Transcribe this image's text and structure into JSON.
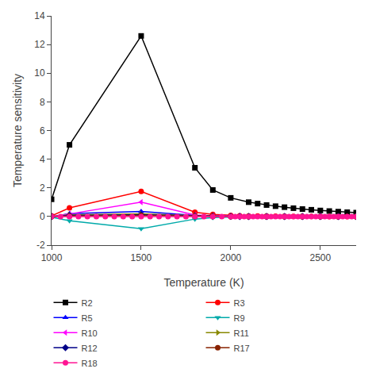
{
  "chart_data": {
    "type": "line",
    "xlabel": "Temperature (K)",
    "ylabel": "Temperature sensitivity",
    "xlim": [
      1000,
      2700
    ],
    "ylim": [
      -2,
      14
    ],
    "xticks": [
      1000,
      1500,
      2000,
      2500
    ],
    "yticks": [
      -2,
      0,
      2,
      4,
      6,
      8,
      10,
      12,
      14
    ],
    "grid": false,
    "legend": "bottom",
    "series": [
      {
        "name": "R2",
        "color": "#000000",
        "marker": "square",
        "x": [
          1000,
          1100,
          1500,
          1800,
          1900,
          2000,
          2100,
          2150,
          2200,
          2250,
          2300,
          2350,
          2400,
          2450,
          2500,
          2550,
          2600,
          2650,
          2700
        ],
        "values": [
          1.2,
          5.0,
          12.6,
          3.4,
          1.85,
          1.3,
          1.0,
          0.9,
          0.8,
          0.72,
          0.65,
          0.58,
          0.52,
          0.47,
          0.42,
          0.38,
          0.34,
          0.3,
          0.27
        ]
      },
      {
        "name": "R3",
        "color": "#ff0000",
        "marker": "circle",
        "x": [
          1000,
          1100,
          1500,
          1800,
          1900,
          2000,
          2050,
          2100,
          2150,
          2200,
          2250,
          2300,
          2350,
          2400,
          2450,
          2500,
          2550,
          2600,
          2650,
          2700
        ],
        "values": [
          0.05,
          0.6,
          1.75,
          0.3,
          0.15,
          0.08,
          0.05,
          0.04,
          0.03,
          0.03,
          0.02,
          0.02,
          0.01,
          0.01,
          0.01,
          0.01,
          0.0,
          0.0,
          0.0,
          0.0
        ]
      },
      {
        "name": "R5",
        "color": "#0000ff",
        "marker": "triangle-up",
        "x": [
          1000,
          1100,
          1500,
          1800,
          1900,
          2000,
          2050,
          2100,
          2200,
          2300,
          2400,
          2500,
          2600,
          2700
        ],
        "values": [
          -0.02,
          0.2,
          0.35,
          0.08,
          0.04,
          0.02,
          0.01,
          0.01,
          0.0,
          0.0,
          0.0,
          0.0,
          0.0,
          0.0
        ]
      },
      {
        "name": "R9",
        "color": "#00aaaa",
        "marker": "triangle-down",
        "x": [
          1000,
          1100,
          1500,
          1800,
          1900,
          2000,
          2100,
          2200,
          2300,
          2400,
          2500,
          2600,
          2700
        ],
        "values": [
          -0.05,
          -0.3,
          -0.85,
          -0.18,
          -0.08,
          -0.03,
          -0.01,
          -0.01,
          0.0,
          0.0,
          0.0,
          0.0,
          0.0
        ]
      },
      {
        "name": "R10",
        "color": "#ff00ff",
        "marker": "triangle-left",
        "x": [
          1000,
          1100,
          1500,
          1800,
          1900,
          2000,
          2050,
          2100,
          2200,
          2300,
          2400,
          2500,
          2600,
          2700
        ],
        "values": [
          0.0,
          0.18,
          1.0,
          0.1,
          0.05,
          0.02,
          0.01,
          0.01,
          0.0,
          0.0,
          0.0,
          0.0,
          0.0,
          0.0
        ]
      },
      {
        "name": "R11",
        "color": "#888800",
        "marker": "triangle-right",
        "x": [
          1000,
          1100,
          1500,
          1800,
          1900,
          2000,
          2100,
          2200,
          2300,
          2400,
          2500,
          2600,
          2700
        ],
        "values": [
          0.0,
          0.12,
          0.18,
          0.04,
          0.02,
          0.01,
          0.0,
          0.0,
          0.0,
          0.0,
          0.0,
          0.0,
          0.0
        ]
      },
      {
        "name": "R12",
        "color": "#000088",
        "marker": "diamond",
        "x": [
          1000,
          1100,
          1500,
          1800,
          1900,
          2000,
          2050,
          2100,
          2200,
          2300,
          2400,
          2500,
          2600,
          2700
        ],
        "values": [
          0.0,
          0.08,
          0.12,
          0.03,
          0.02,
          0.01,
          0.0,
          0.0,
          0.0,
          0.0,
          0.0,
          0.0,
          0.0,
          0.0
        ]
      },
      {
        "name": "R17",
        "color": "#882200",
        "marker": "circle",
        "x": [
          1000,
          1100,
          1500,
          1800,
          1900,
          2000,
          2100,
          2200,
          2300,
          2400,
          2500,
          2600,
          2700
        ],
        "values": [
          0.0,
          0.04,
          0.08,
          0.02,
          0.01,
          0.0,
          0.0,
          0.0,
          0.0,
          0.0,
          0.0,
          0.0,
          0.0
        ]
      },
      {
        "name": "R18",
        "color": "#ff1493",
        "marker": "circle",
        "x": [
          1000,
          1050,
          1100,
          1150,
          1200,
          1250,
          1300,
          1350,
          1400,
          1450,
          1500,
          1550,
          1600,
          1650,
          1700,
          1750,
          1800,
          1850,
          1900,
          1950,
          2000,
          2025,
          2050,
          2075,
          2100,
          2125,
          2150,
          2175,
          2200,
          2225,
          2250,
          2275,
          2300,
          2325,
          2350,
          2375,
          2400,
          2425,
          2450,
          2475,
          2500,
          2525,
          2550,
          2575,
          2600,
          2625,
          2650,
          2675,
          2700
        ],
        "values": [
          0.0,
          0.0,
          0.0,
          0.0,
          0.0,
          0.0,
          0.0,
          0.0,
          0.0,
          0.0,
          0.0,
          0.0,
          0.0,
          0.0,
          0.0,
          0.0,
          0.0,
          0.0,
          0.0,
          0.0,
          0.0,
          0.0,
          0.0,
          0.0,
          0.0,
          0.0,
          0.0,
          0.0,
          0.0,
          0.0,
          0.0,
          0.0,
          0.0,
          0.0,
          0.0,
          0.0,
          0.0,
          0.0,
          0.0,
          0.0,
          0.0,
          0.0,
          0.0,
          0.0,
          0.0,
          0.0,
          0.0,
          0.0,
          0.0
        ]
      }
    ]
  }
}
